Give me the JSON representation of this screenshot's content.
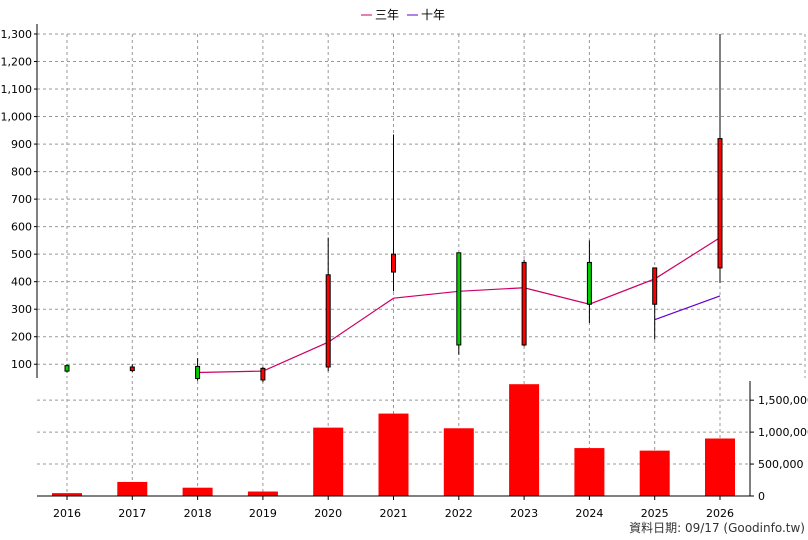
{
  "legend": [
    {
      "label": "三年",
      "color": "#cc0066"
    },
    {
      "label": "十年",
      "color": "#6600cc"
    }
  ],
  "footer": "資料日期: 09/17  (Goodinfo.tw)",
  "chart_data": [
    {
      "type": "candlestick",
      "categories": [
        "2016",
        "2017",
        "2018",
        "2019",
        "2020",
        "2021",
        "2022",
        "2023",
        "2024",
        "2025",
        "2026"
      ],
      "ylim": [
        0,
        1300
      ],
      "yticks": [
        100,
        200,
        300,
        400,
        500,
        600,
        700,
        800,
        900,
        1000,
        1100,
        1200,
        1300
      ],
      "yticklabels": [
        "100",
        "200",
        "300",
        "400",
        "500",
        "600",
        "700",
        "800",
        "900",
        "1,000",
        "1,100",
        "1,200",
        "1,300"
      ],
      "grid": true,
      "candles": [
        {
          "x": "2016",
          "open": 95,
          "close": 75,
          "high": 100,
          "low": 70,
          "color": "green"
        },
        {
          "x": "2017",
          "open": 77,
          "close": 90,
          "high": 100,
          "low": 72,
          "color": "red"
        },
        {
          "x": "2018",
          "open": 92,
          "close": 48,
          "high": 122,
          "low": 40,
          "color": "green"
        },
        {
          "x": "2019",
          "open": 43,
          "close": 85,
          "high": 90,
          "low": 35,
          "color": "red"
        },
        {
          "x": "2020",
          "open": 90,
          "close": 425,
          "high": 560,
          "low": 75,
          "color": "red"
        },
        {
          "x": "2021",
          "open": 435,
          "close": 500,
          "high": 935,
          "low": 365,
          "color": "red"
        },
        {
          "x": "2022",
          "open": 505,
          "close": 170,
          "high": 505,
          "low": 135,
          "color": "green"
        },
        {
          "x": "2023",
          "open": 170,
          "close": 470,
          "high": 480,
          "low": 165,
          "color": "red"
        },
        {
          "x": "2024",
          "open": 470,
          "close": 318,
          "high": 550,
          "low": 250,
          "color": "green"
        },
        {
          "x": "2025",
          "open": 318,
          "close": 450,
          "high": 450,
          "low": 190,
          "color": "red"
        },
        {
          "x": "2026",
          "open": 450,
          "close": 920,
          "high": 1300,
          "low": 395,
          "color": "red"
        }
      ],
      "series": [
        {
          "name": "三年",
          "color": "#cc0066",
          "points": [
            [
              "2018",
              70
            ],
            [
              "2019",
              75
            ],
            [
              "2020",
              180
            ],
            [
              "2021",
              340
            ],
            [
              "2022",
              365
            ],
            [
              "2023",
              378
            ],
            [
              "2024",
              318
            ],
            [
              "2025",
              410
            ],
            [
              "2026",
              560
            ]
          ]
        },
        {
          "name": "十年",
          "color": "#6600cc",
          "points": [
            [
              "2025",
              262
            ],
            [
              "2026",
              348
            ]
          ]
        }
      ]
    },
    {
      "type": "bar",
      "categories": [
        "2016",
        "2017",
        "2018",
        "2019",
        "2020",
        "2021",
        "2022",
        "2023",
        "2024",
        "2025",
        "2026"
      ],
      "values": [
        45000,
        220000,
        130000,
        70000,
        1070000,
        1290000,
        1060000,
        1750000,
        750000,
        710000,
        900000
      ],
      "ylim": [
        0,
        1800000
      ],
      "yticks": [
        0,
        500000,
        1000000,
        1500000
      ],
      "yticklabels": [
        "0",
        "500,000",
        "1,000,000",
        "1,500,000"
      ],
      "color": "#ff0000",
      "grid": true
    }
  ]
}
